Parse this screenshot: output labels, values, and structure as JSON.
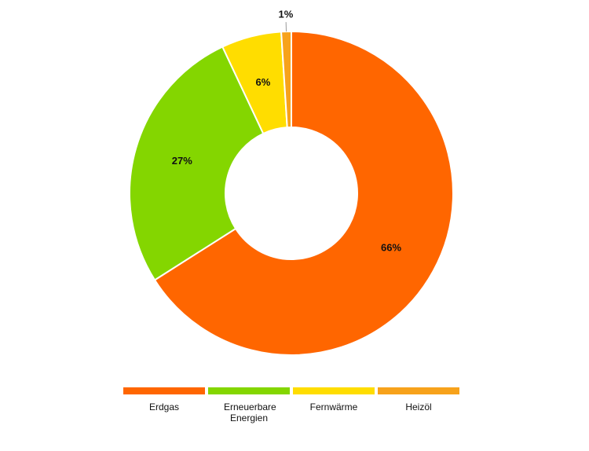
{
  "chart_data": {
    "type": "donut",
    "categories": [
      "Erdgas",
      "Erneuerbare Energien",
      "Fernwärme",
      "Heizöl"
    ],
    "values": [
      66,
      27,
      6,
      1
    ],
    "value_labels": [
      "66%",
      "27%",
      "6%",
      "1%"
    ],
    "colors": [
      "#ff6600",
      "#84d600",
      "#ffdd00",
      "#f7a21b"
    ]
  }
}
